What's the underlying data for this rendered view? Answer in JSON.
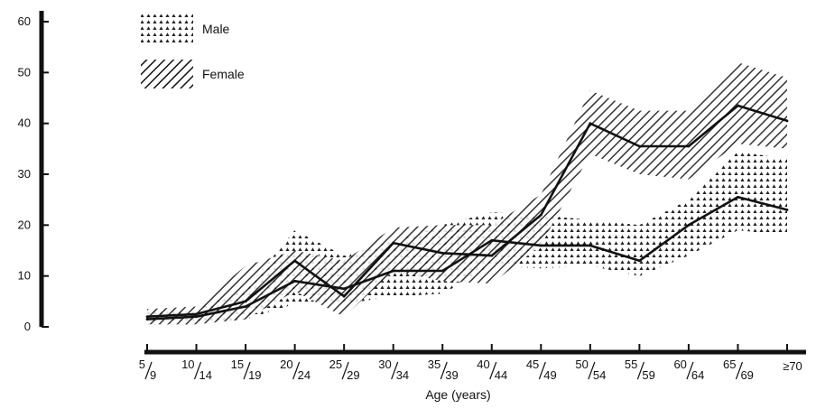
{
  "chart_data": {
    "type": "line",
    "title": "",
    "xlabel": "Age  (years)",
    "ylabel": "",
    "ylim": [
      0,
      60
    ],
    "yticks": [
      "0",
      "10",
      "20",
      "30",
      "40",
      "50",
      "60"
    ],
    "categories": [
      "5/9",
      "10/14",
      "15/19",
      "20/24",
      "25/29",
      "30/34",
      "35/39",
      "40/44",
      "45/49",
      "50/54",
      "55/59",
      "60/64",
      "65/69",
      "≥70"
    ],
    "x_tick_labels": [
      {
        "top": "5",
        "bottom": "9"
      },
      {
        "top": "10",
        "bottom": "14"
      },
      {
        "top": "15",
        "bottom": "19"
      },
      {
        "top": "20",
        "bottom": "24"
      },
      {
        "top": "25",
        "bottom": "29"
      },
      {
        "top": "30",
        "bottom": "34"
      },
      {
        "top": "35",
        "bottom": "39"
      },
      {
        "top": "40",
        "bottom": "44"
      },
      {
        "top": "45",
        "bottom": "49"
      },
      {
        "top": "50",
        "bottom": "54"
      },
      {
        "top": "55",
        "bottom": "59"
      },
      {
        "top": "60",
        "bottom": "64"
      },
      {
        "top": "65",
        "bottom": "69"
      },
      {
        "top": "≥70",
        "bottom": ""
      }
    ],
    "legend": {
      "placement": "top-left"
    },
    "series": [
      {
        "name": "Male",
        "pattern": "dots",
        "values": [
          1.5,
          2,
          4,
          9,
          7.5,
          11,
          11,
          17,
          16,
          16,
          13,
          20,
          25.5,
          23
        ],
        "lower": [
          0.5,
          0.5,
          1.5,
          4.5,
          4.5,
          6,
          6.5,
          12,
          11.5,
          12,
          10,
          14,
          19,
          18
        ],
        "upper": [
          3,
          3.5,
          7.5,
          19,
          14,
          17,
          20,
          22.5,
          22,
          21,
          20,
          25,
          34.5,
          33
        ]
      },
      {
        "name": "Female",
        "pattern": "hatch",
        "values": [
          2,
          2.5,
          5,
          13,
          6,
          16.5,
          14.5,
          14,
          22,
          40,
          35.5,
          35.5,
          43.5,
          40.5
        ],
        "lower": [
          0.5,
          0.5,
          1.5,
          7,
          2,
          11,
          9,
          8.5,
          16,
          34,
          30,
          29,
          36,
          35
        ],
        "upper": [
          3.5,
          4,
          12,
          15,
          13,
          19.5,
          20,
          20,
          26,
          46.5,
          42.5,
          42.5,
          52,
          49
        ]
      }
    ],
    "colors": {
      "ink": "#111111",
      "background": "#ffffff"
    }
  }
}
